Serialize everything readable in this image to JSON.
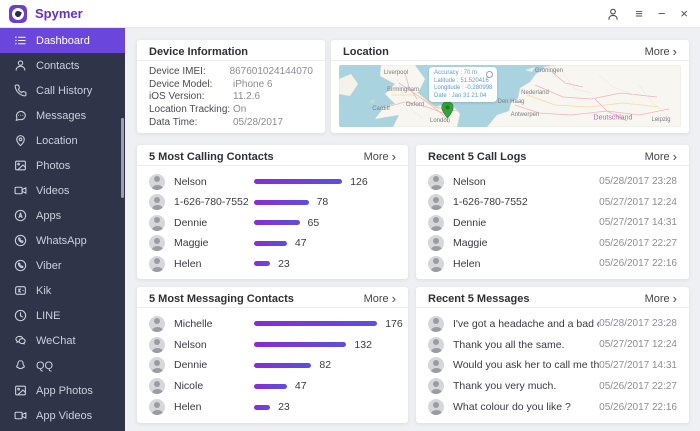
{
  "header": {
    "brand": "Spymer",
    "icons": {
      "menu": "≡",
      "minimize": "−",
      "close": "×",
      "chevron_right": "›"
    }
  },
  "sidebar": {
    "items": [
      {
        "label": "Dashboard",
        "icon": "dashboard-icon",
        "active": true
      },
      {
        "label": "Contacts",
        "icon": "contacts-icon",
        "active": false
      },
      {
        "label": "Call History",
        "icon": "call-history-icon",
        "active": false
      },
      {
        "label": "Messages",
        "icon": "messages-icon",
        "active": false
      },
      {
        "label": "Location",
        "icon": "location-icon",
        "active": false
      },
      {
        "label": "Photos",
        "icon": "photos-icon",
        "active": false
      },
      {
        "label": "Videos",
        "icon": "videos-icon",
        "active": false
      },
      {
        "label": "Apps",
        "icon": "apps-icon",
        "active": false
      },
      {
        "label": "WhatsApp",
        "icon": "whatsapp-icon",
        "active": false
      },
      {
        "label": "Viber",
        "icon": "viber-icon",
        "active": false
      },
      {
        "label": "Kik",
        "icon": "kik-icon",
        "active": false
      },
      {
        "label": "LINE",
        "icon": "line-icon",
        "active": false
      },
      {
        "label": "WeChat",
        "icon": "wechat-icon",
        "active": false
      },
      {
        "label": "QQ",
        "icon": "qq-icon",
        "active": false
      },
      {
        "label": "App Photos",
        "icon": "app-photos-icon",
        "active": false
      },
      {
        "label": "App Videos",
        "icon": "app-videos-icon",
        "active": false
      }
    ]
  },
  "cards": {
    "device_info": {
      "title": "Device Information",
      "rows": [
        {
          "label": "Device IMEI:",
          "value": "867601024144070"
        },
        {
          "label": "Device Model:",
          "value": "iPhone 6"
        },
        {
          "label": "iOS Version:",
          "value": "11.2.6"
        },
        {
          "label": "Location Tracking:",
          "value": "On"
        },
        {
          "label": "Data Time:",
          "value": "05/28/2017"
        }
      ]
    },
    "location": {
      "title": "Location",
      "more_label": "More",
      "map": {
        "labels": [
          "Liverpool",
          "Birmingham",
          "Oxford",
          "Cardiff",
          "London",
          "Den Haag",
          "Nederland",
          "Antwerpen",
          "Groningen",
          "Leipzig"
        ],
        "country_label": "Deutschland",
        "tooltip": {
          "lines": [
            "Accuracy : 70 m",
            "Latitude : 51.520416",
            "Longitude : -0.280998",
            "Date : Jan 31 21:04"
          ]
        }
      }
    },
    "calling": {
      "title": "5 Most Calling Contacts",
      "more_label": "More",
      "chart": {
        "type": "bar",
        "rows": [
          {
            "name": "Nelson",
            "value": 126
          },
          {
            "name": "1-626-780-7552",
            "value": 78
          },
          {
            "name": "Dennie",
            "value": 65
          },
          {
            "name": "Maggie",
            "value": 47
          },
          {
            "name": "Helen",
            "value": 23
          }
        ]
      }
    },
    "call_logs": {
      "title": "Recent 5 Call Logs",
      "more_label": "More",
      "rows": [
        {
          "name": "Nelson",
          "time": "05/28/2017 23:28"
        },
        {
          "name": "1-626-780-7552",
          "time": "05/27/2017 12:24"
        },
        {
          "name": "Dennie",
          "time": "05/27/2017 14:31"
        },
        {
          "name": "Maggie",
          "time": "05/26/2017 22:27"
        },
        {
          "name": "Helen",
          "time": "05/26/2017 22:16"
        }
      ]
    },
    "messaging": {
      "title": "5 Most Messaging Contacts",
      "more_label": "More",
      "chart": {
        "type": "bar",
        "rows": [
          {
            "name": "Michelle",
            "value": 176
          },
          {
            "name": "Nelson",
            "value": 132
          },
          {
            "name": "Dennie",
            "value": 82
          },
          {
            "name": "Nicole",
            "value": 47
          },
          {
            "name": "Helen",
            "value": 23
          }
        ]
      }
    },
    "messages": {
      "title": "Recent 5 Messages",
      "more_label": "More",
      "rows": [
        {
          "text": "I've got a headache and a bad co...",
          "time": "05/28/2017 23:28"
        },
        {
          "text": "Thank you all the same.",
          "time": "05/27/2017 12:24"
        },
        {
          "text": "Would you ask her to call me this...",
          "time": "05/27/2017 14:31"
        },
        {
          "text": "Thank you very much.",
          "time": "05/26/2017 22:27"
        },
        {
          "text": "What colour do you like ?",
          "time": "05/26/2017 22:16"
        }
      ]
    }
  },
  "colors": {
    "accent_purple": "#6b46dd",
    "sidebar_bg": "#2f3448",
    "bar_gradient_start": "#8b2bd6",
    "bar_gradient_end": "#5b50dd",
    "pin_green": "#35a23a"
  }
}
